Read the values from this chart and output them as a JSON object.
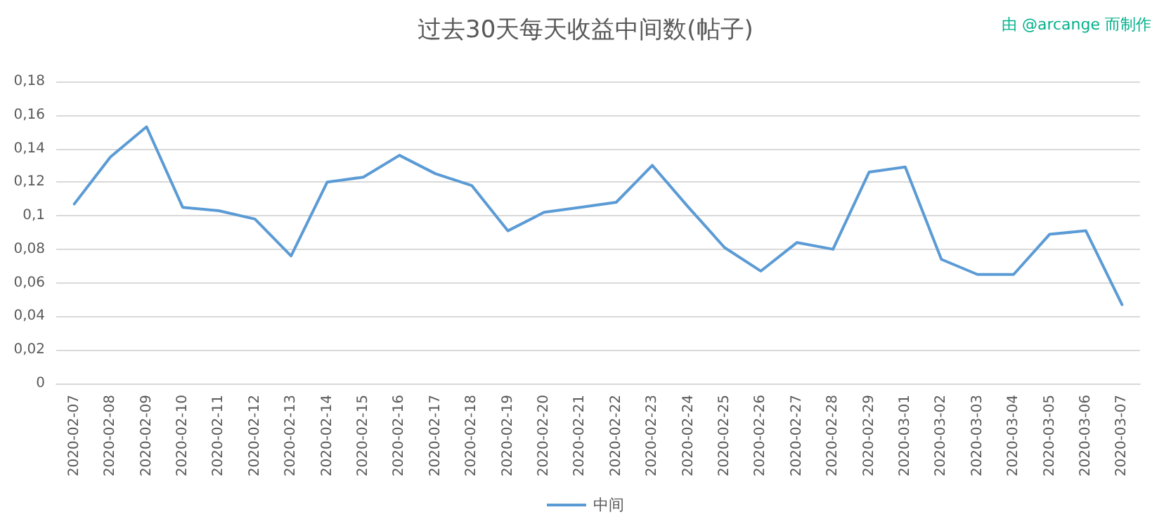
{
  "chart_data": {
    "type": "line",
    "title": "过去30天每天收益中间数(帖子)",
    "annotations": [
      "由 @arcange 而制作"
    ],
    "categories": [
      "2020-02-07",
      "2020-02-08",
      "2020-02-09",
      "2020-02-10",
      "2020-02-11",
      "2020-02-12",
      "2020-02-13",
      "2020-02-14",
      "2020-02-15",
      "2020-02-16",
      "2020-02-17",
      "2020-02-18",
      "2020-02-19",
      "2020-02-20",
      "2020-02-21",
      "2020-02-22",
      "2020-02-23",
      "2020-02-24",
      "2020-02-25",
      "2020-02-26",
      "2020-02-27",
      "2020-02-28",
      "2020-02-29",
      "2020-03-01",
      "2020-03-02",
      "2020-03-03",
      "2020-03-04",
      "2020-03-05",
      "2020-03-06",
      "2020-03-07"
    ],
    "series": [
      {
        "name": "中间",
        "color": "#5b9bd5",
        "values": [
          0.107,
          0.135,
          0.153,
          0.105,
          0.103,
          0.098,
          0.076,
          0.12,
          0.123,
          0.136,
          0.125,
          0.118,
          0.091,
          0.102,
          0.105,
          0.108,
          0.13,
          0.105,
          0.081,
          0.067,
          0.084,
          0.08,
          0.126,
          0.129,
          0.074,
          0.065,
          0.065,
          0.089,
          0.091,
          0.047
        ]
      }
    ],
    "ylim": [
      0,
      0.18
    ],
    "yticks": [
      0,
      {
        "value": 0.02,
        "label": "0,02"
      },
      {
        "value": 0.04,
        "label": "0,04"
      },
      {
        "value": 0.06,
        "label": "0,06"
      },
      {
        "value": 0.08,
        "label": "0,08"
      },
      {
        "value": 0.1,
        "label": "0,1"
      },
      {
        "value": 0.12,
        "label": "0,12"
      },
      {
        "value": 0.14,
        "label": "0,14"
      },
      {
        "value": 0.16,
        "label": "0,16"
      },
      {
        "value": 0.18,
        "label": "0,18"
      }
    ],
    "grid": "y",
    "legend": "bottom",
    "marker": "none",
    "line_style": "solid"
  }
}
